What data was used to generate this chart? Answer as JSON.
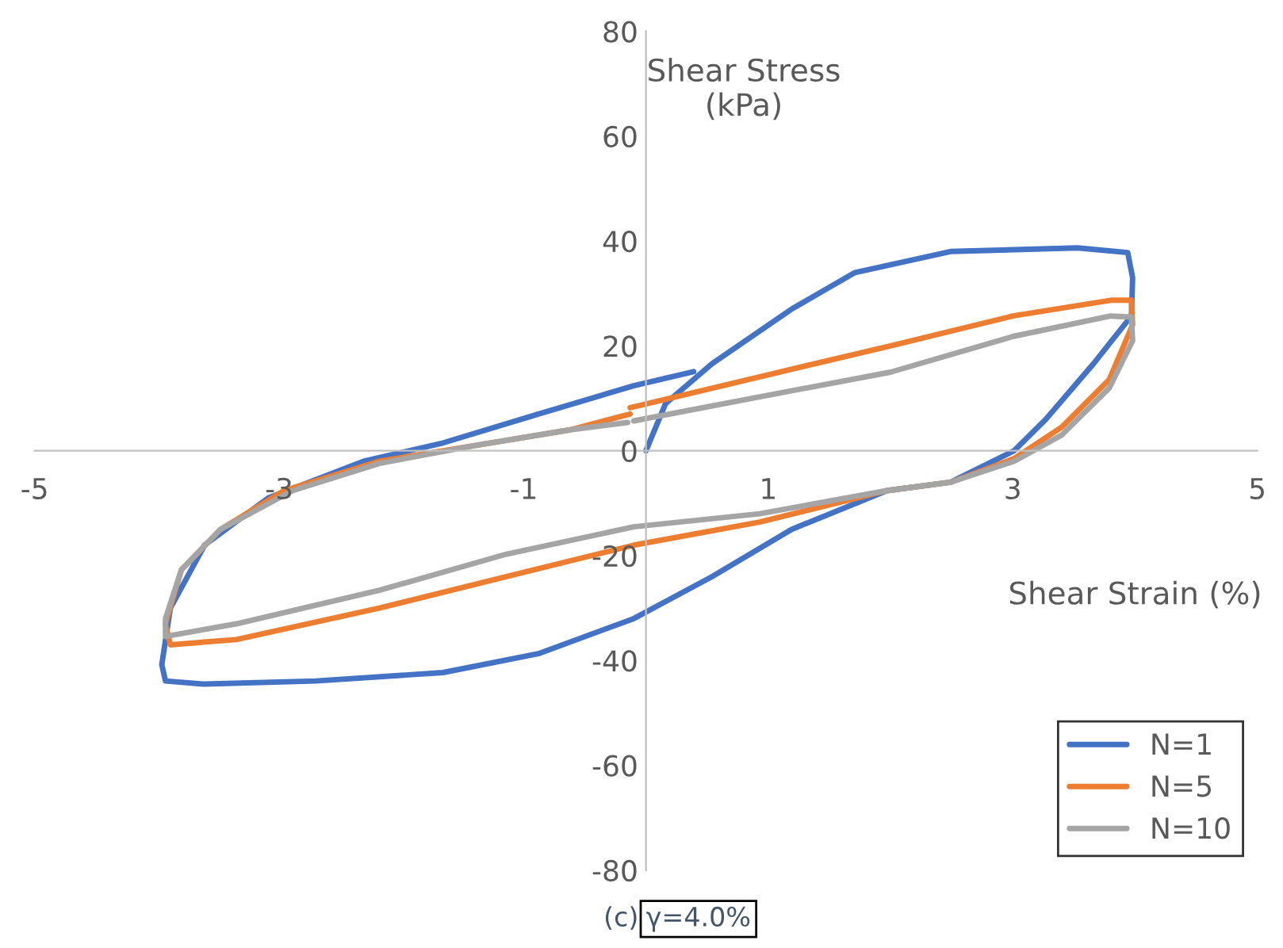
{
  "chart_data": {
    "type": "line",
    "xlabel": "Shear Strain (%)",
    "ylabel": "Shear Stress\n(kPa)",
    "xlim": [
      -5,
      5
    ],
    "xticks": [
      -5,
      -3,
      -1,
      1,
      3,
      5
    ],
    "ylim": [
      -80,
      80
    ],
    "yticks": [
      -80,
      -60,
      -40,
      -20,
      0,
      20,
      40,
      60,
      80
    ],
    "grid": false,
    "legend": "bottom right",
    "marker": "none",
    "line_style": "solid",
    "annotations": [
      "(c)",
      "γ=4.0%"
    ],
    "series": [
      {
        "name": "N=1",
        "color": "#4472c4",
        "x": [
          0,
          0.16,
          0.54,
          1.19,
          1.71,
          2.49,
          3.53,
          3.94,
          3.98,
          3.97,
          3.66,
          3.27,
          3.01,
          2.49,
          1.97,
          1.19,
          0.54,
          -0.1,
          -0.88,
          -1.66,
          -2.7,
          -3.61,
          -3.93,
          -3.96,
          -3.89,
          -3.61,
          -3.09,
          -2.31,
          -1.66,
          -0.88,
          -0.1,
          0.39
        ],
        "values": [
          0,
          9,
          16.6,
          27,
          34,
          38,
          38.7,
          37.8,
          33,
          25.7,
          16.6,
          6,
          0,
          -6,
          -7.6,
          -15,
          -24,
          -32,
          -38.7,
          -42.3,
          -43.9,
          -44.5,
          -43.9,
          -40.8,
          -30,
          -18,
          -9,
          -2,
          1.5,
          7,
          12.4,
          15.1
        ]
      },
      {
        "name": "N=5",
        "color": "#ed7d31",
        "x": [
          -0.13,
          1,
          2,
          3,
          3.8,
          3.97,
          3.98,
          3.79,
          3.4,
          3.01,
          2.49,
          1.97,
          0.93,
          -0.1,
          -1.14,
          -2.18,
          -3.35,
          -3.89,
          -3.93,
          -3.8,
          -3.48,
          -2.96,
          -2.18,
          -1.4,
          -0.62,
          -0.13
        ],
        "values": [
          8.2,
          14.5,
          20,
          25.7,
          28.7,
          28.7,
          24,
          13.6,
          4.5,
          -1.5,
          -6,
          -7.6,
          -13.6,
          -18,
          -24,
          -30,
          -36,
          -37,
          -33,
          -22.7,
          -15,
          -7.6,
          -2,
          1,
          4,
          7
        ]
      },
      {
        "name": "N=10",
        "color": "#a5a5a5",
        "x": [
          -0.1,
          1,
          2,
          3,
          3.8,
          3.97,
          3.98,
          3.79,
          3.4,
          3.01,
          2.49,
          1.97,
          0.93,
          -0.1,
          -1.14,
          -2.18,
          -3.35,
          -3.93,
          -3.93,
          -3.8,
          -3.48,
          -2.89,
          -2.18,
          -1.4,
          -0.62,
          -0.15
        ],
        "values": [
          5.7,
          10.6,
          15,
          21.8,
          25.7,
          25.5,
          21,
          12,
          3,
          -2,
          -6,
          -7.6,
          -12,
          -14.5,
          -19.7,
          -26.6,
          -33,
          -35.4,
          -32,
          -22.7,
          -15,
          -7.6,
          -2.4,
          1,
          4,
          5.4
        ]
      }
    ]
  }
}
